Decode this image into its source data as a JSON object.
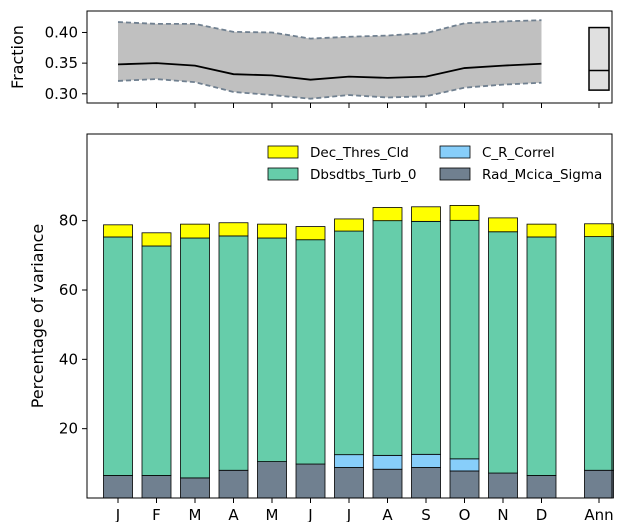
{
  "chart_data": [
    {
      "type": "line",
      "ylabel": "Fraction",
      "ylim": [
        0.285,
        0.435
      ],
      "yticks": [
        0.3,
        0.35,
        0.4
      ],
      "ytick_labels": [
        "0.30",
        "0.35",
        "0.40"
      ],
      "x": [
        "J",
        "F",
        "M",
        "A",
        "M",
        "J",
        "J",
        "A",
        "S",
        "O",
        "N",
        "D"
      ],
      "mean": [
        0.348,
        0.35,
        0.346,
        0.332,
        0.33,
        0.323,
        0.328,
        0.326,
        0.328,
        0.342,
        0.346,
        0.349
      ],
      "upper": [
        0.417,
        0.414,
        0.414,
        0.401,
        0.4,
        0.39,
        0.393,
        0.395,
        0.399,
        0.415,
        0.418,
        0.42
      ],
      "lower": [
        0.321,
        0.324,
        0.319,
        0.303,
        0.298,
        0.292,
        0.298,
        0.294,
        0.296,
        0.31,
        0.315,
        0.318
      ],
      "annual_box": {
        "low": 0.306,
        "median": 0.338,
        "high": 0.408
      },
      "colors": {
        "band": "#c0c0c0",
        "mean": "#000000",
        "bound": "#708090",
        "box": "#e0e0e0"
      },
      "grid": false
    },
    {
      "type": "bar",
      "stacked": true,
      "ylabel": "Percentage of variance",
      "ylim": [
        0,
        105
      ],
      "yticks": [
        20,
        40,
        60,
        80
      ],
      "ytick_labels": [
        "20",
        "40",
        "60",
        "80"
      ],
      "categories": [
        "J",
        "F",
        "M",
        "A",
        "M",
        "J",
        "J",
        "A",
        "S",
        "O",
        "N",
        "D",
        "Ann"
      ],
      "series": [
        {
          "name": "Rad_Mcica_Sigma",
          "color": "#708090",
          "values": [
            6.5,
            6.5,
            5.8,
            8.0,
            10.5,
            9.8,
            8.8,
            8.3,
            8.8,
            7.8,
            7.2,
            6.5,
            8.0
          ]
        },
        {
          "name": "C_R_Correl",
          "color": "#87cefa",
          "values": [
            0,
            0,
            0,
            0,
            0,
            0,
            3.7,
            4.0,
            3.8,
            3.5,
            0,
            0,
            0
          ]
        },
        {
          "name": "Dbsdtbs_Turb_0",
          "color": "#66cdaa",
          "values": [
            68.8,
            66.2,
            69.2,
            67.6,
            64.5,
            64.7,
            64.5,
            67.7,
            67.2,
            68.8,
            69.6,
            68.8,
            67.4
          ]
        },
        {
          "name": "Dec_Thres_Cld",
          "color": "#ffff00",
          "values": [
            3.5,
            3.8,
            4.0,
            3.8,
            4.0,
            3.8,
            3.5,
            3.8,
            4.2,
            4.3,
            4.0,
            3.7,
            3.7
          ]
        }
      ],
      "legend": {
        "placement": "top-right",
        "columns": 2,
        "order": [
          "Dec_Thres_Cld",
          "C_R_Correl",
          "Dbsdtbs_Turb_0",
          "Rad_Mcica_Sigma"
        ]
      },
      "grid": false
    }
  ]
}
